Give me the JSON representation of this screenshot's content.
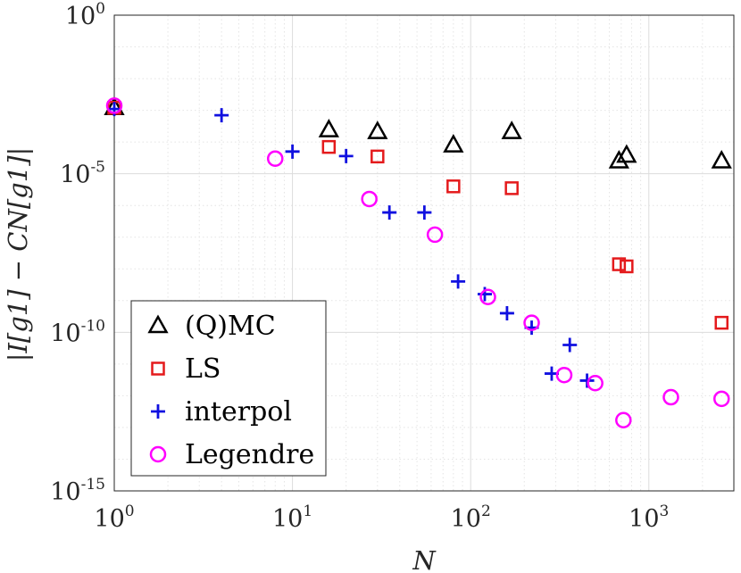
{
  "chart_data": {
    "type": "scatter",
    "x_scale": "log",
    "y_scale": "log",
    "xlim": [
      1,
      3000
    ],
    "ylim": [
      1e-15,
      1
    ],
    "x_ticks": [
      {
        "value": 1,
        "base": "10",
        "exp": "0"
      },
      {
        "value": 10,
        "base": "10",
        "exp": "1"
      },
      {
        "value": 100,
        "base": "10",
        "exp": "2"
      },
      {
        "value": 1000,
        "base": "10",
        "exp": "3"
      }
    ],
    "y_ticks": [
      {
        "value": 1,
        "base": "10",
        "exp": "0"
      },
      {
        "value": 1e-05,
        "base": "10",
        "exp": "-5"
      },
      {
        "value": 1e-10,
        "base": "10",
        "exp": "-10"
      },
      {
        "value": 1e-15,
        "base": "10",
        "exp": "-15"
      }
    ],
    "xlabel": "N",
    "ylabel": "|I[g1] − CN[g1]|",
    "grid": true,
    "legend_position": "bottom-left",
    "series": [
      {
        "name": "(Q)MC",
        "marker": "triangle",
        "color": "#000000",
        "points": [
          {
            "x": 1,
            "y": 0.0012
          },
          {
            "x": 16,
            "y": 0.00024
          },
          {
            "x": 30,
            "y": 0.00021
          },
          {
            "x": 80,
            "y": 8e-05
          },
          {
            "x": 170,
            "y": 0.00021
          },
          {
            "x": 680,
            "y": 2.5e-05
          },
          {
            "x": 750,
            "y": 3.8e-05
          },
          {
            "x": 2560,
            "y": 2.5e-05
          }
        ]
      },
      {
        "name": "LS",
        "marker": "square",
        "color": "#e41a1c",
        "points": [
          {
            "x": 1,
            "y": 0.0012
          },
          {
            "x": 16,
            "y": 7e-05
          },
          {
            "x": 30,
            "y": 3.5e-05
          },
          {
            "x": 80,
            "y": 4e-06
          },
          {
            "x": 170,
            "y": 3.5e-06
          },
          {
            "x": 680,
            "y": 1.4e-08
          },
          {
            "x": 750,
            "y": 1.2e-08
          },
          {
            "x": 2560,
            "y": 2e-10
          }
        ]
      },
      {
        "name": "interpol",
        "marker": "plus",
        "color": "#1010e0",
        "points": [
          {
            "x": 1,
            "y": 0.0011
          },
          {
            "x": 4,
            "y": 0.0007
          },
          {
            "x": 10,
            "y": 5e-05
          },
          {
            "x": 20,
            "y": 3.6e-05
          },
          {
            "x": 35,
            "y": 6e-07
          },
          {
            "x": 55,
            "y": 6e-07
          },
          {
            "x": 85,
            "y": 4e-09
          },
          {
            "x": 120,
            "y": 1.6e-09
          },
          {
            "x": 160,
            "y": 4e-10
          },
          {
            "x": 220,
            "y": 1.4e-10
          },
          {
            "x": 285,
            "y": 5e-12
          },
          {
            "x": 360,
            "y": 4e-11
          },
          {
            "x": 450,
            "y": 3e-12
          }
        ]
      },
      {
        "name": "Legendre",
        "marker": "circle",
        "color": "#ff00ff",
        "points": [
          {
            "x": 1,
            "y": 0.0014
          },
          {
            "x": 8,
            "y": 3e-05
          },
          {
            "x": 27,
            "y": 1.6e-06
          },
          {
            "x": 63,
            "y": 1.2e-07
          },
          {
            "x": 125,
            "y": 1.3e-09
          },
          {
            "x": 220,
            "y": 2e-10
          },
          {
            "x": 335,
            "y": 4.5e-12
          },
          {
            "x": 500,
            "y": 2.5e-12
          },
          {
            "x": 720,
            "y": 1.7e-13
          },
          {
            "x": 1330,
            "y": 9e-13
          },
          {
            "x": 2560,
            "y": 8e-13
          }
        ]
      }
    ]
  }
}
